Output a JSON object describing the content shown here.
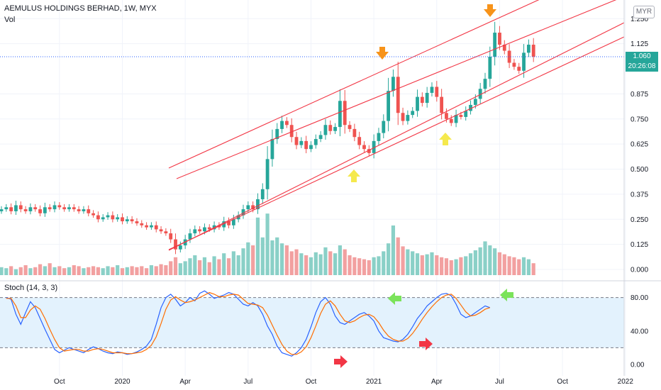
{
  "header": {
    "symbol_line": "AEMULUS HOLDINGS BERHAD, 1W, MYX",
    "volume_label": "Vol",
    "stoch_label": "Stoch (14, 3, 3)"
  },
  "price_axis": {
    "currency_button": "MYR",
    "last_price": "1.060",
    "countdown": "20:26:08"
  },
  "colors": {
    "up": "#26a69a",
    "down": "#ef5350",
    "vol_up": "#8ad0c7",
    "vol_down": "#f2a0a0",
    "channel": "#f23645",
    "stoch_k": "#2962ff",
    "stoch_d": "#ff6d00",
    "stoch_band": "#e3f2fd"
  },
  "chart_data": [
    {
      "type": "candlestick",
      "title": "AEMULUS HOLDINGS BERHAD, 1W, MYX",
      "ylim": [
        0,
        1.3
      ],
      "y_ticks": [
        "0.000",
        "0.125",
        "0.250",
        "0.375",
        "0.500",
        "0.625",
        "0.750",
        "0.875",
        "1.125",
        "1.250"
      ],
      "x_ticks": [
        {
          "label": "Oct",
          "week": 12
        },
        {
          "label": "2020",
          "week": 25
        },
        {
          "label": "Apr",
          "week": 38
        },
        {
          "label": "Jul",
          "week": 51
        },
        {
          "label": "Oct",
          "week": 64
        },
        {
          "label": "2021",
          "week": 77
        },
        {
          "label": "Apr",
          "week": 90
        },
        {
          "label": "Jul",
          "week": 103
        },
        {
          "label": "Oct",
          "week": 116
        },
        {
          "label": "2022",
          "week": 129
        }
      ],
      "close": [
        0.3,
        0.31,
        0.29,
        0.32,
        0.3,
        0.29,
        0.31,
        0.3,
        0.28,
        0.31,
        0.3,
        0.32,
        0.31,
        0.3,
        0.31,
        0.3,
        0.29,
        0.3,
        0.28,
        0.27,
        0.25,
        0.26,
        0.27,
        0.25,
        0.26,
        0.24,
        0.25,
        0.24,
        0.23,
        0.22,
        0.21,
        0.22,
        0.2,
        0.19,
        0.18,
        0.15,
        0.1,
        0.12,
        0.15,
        0.18,
        0.2,
        0.19,
        0.21,
        0.2,
        0.22,
        0.21,
        0.24,
        0.22,
        0.25,
        0.27,
        0.3,
        0.32,
        0.3,
        0.35,
        0.4,
        0.55,
        0.65,
        0.7,
        0.74,
        0.72,
        0.66,
        0.62,
        0.64,
        0.6,
        0.62,
        0.65,
        0.67,
        0.72,
        0.69,
        0.71,
        0.84,
        0.72,
        0.7,
        0.66,
        0.62,
        0.6,
        0.58,
        0.64,
        0.68,
        0.74,
        0.89,
        0.96,
        0.78,
        0.74,
        0.77,
        0.79,
        0.86,
        0.83,
        0.88,
        0.91,
        0.86,
        0.78,
        0.75,
        0.73,
        0.77,
        0.76,
        0.79,
        0.82,
        0.85,
        0.9,
        0.95,
        1.06,
        1.18,
        1.12,
        1.09,
        1.03,
        1.01,
        0.99,
        1.08,
        1.12,
        1.06
      ],
      "y_annotations": [
        {
          "text": "1.060",
          "y": 1.06
        }
      ]
    },
    {
      "type": "bar",
      "title": "Vol",
      "values": [
        8,
        7,
        9,
        6,
        8,
        10,
        7,
        8,
        11,
        9,
        12,
        8,
        9,
        7,
        8,
        10,
        9,
        7,
        8,
        9,
        8,
        7,
        9,
        8,
        10,
        7,
        8,
        9,
        8,
        9,
        7,
        10,
        9,
        11,
        10,
        14,
        18,
        12,
        14,
        17,
        20,
        15,
        18,
        13,
        19,
        16,
        22,
        17,
        24,
        20,
        27,
        33,
        30,
        58,
        38,
        62,
        35,
        38,
        32,
        30,
        24,
        26,
        22,
        20,
        18,
        23,
        21,
        28,
        24,
        22,
        30,
        26,
        20,
        18,
        17,
        16,
        15,
        18,
        19,
        24,
        32,
        50,
        38,
        29,
        26,
        24,
        22,
        20,
        21,
        23,
        20,
        18,
        17,
        15,
        16,
        18,
        19,
        22,
        25,
        28,
        34,
        30,
        27,
        23,
        21,
        19,
        18,
        16,
        18,
        16,
        12
      ],
      "ylim": [
        0,
        65
      ]
    },
    {
      "type": "line",
      "title": "Stoch (14, 3, 3)",
      "ylim": [
        0,
        100
      ],
      "y_ticks": [
        "0.00",
        "40.00",
        "80.00"
      ],
      "bands": [
        20,
        80
      ],
      "series": [
        {
          "values": [
            80,
            78,
            60,
            48,
            62,
            75,
            68,
            55,
            42,
            30,
            18,
            14,
            17,
            20,
            18,
            16,
            14,
            18,
            21,
            19,
            16,
            14,
            13,
            15,
            14,
            12,
            13,
            15,
            18,
            22,
            30,
            48,
            68,
            80,
            84,
            78,
            70,
            74,
            80,
            76,
            85,
            88,
            84,
            79,
            81,
            83,
            86,
            84,
            78,
            72,
            70,
            74,
            70,
            60,
            46,
            36,
            22,
            14,
            12,
            10,
            14,
            20,
            30,
            45,
            62,
            75,
            80,
            72,
            58,
            50,
            48,
            52,
            56,
            60,
            62,
            58,
            52,
            40,
            32,
            30,
            28,
            27,
            30,
            36,
            45,
            55,
            62,
            70,
            75,
            80,
            84,
            85,
            82,
            72,
            60,
            56,
            58,
            62,
            66,
            70,
            68
          ]
        },
        {
          "values": [
            79,
            79,
            70,
            56,
            56,
            65,
            70,
            66,
            55,
            42,
            30,
            20,
            16,
            17,
            18,
            18,
            16,
            16,
            18,
            19,
            18,
            16,
            14,
            14,
            14,
            13,
            13,
            14,
            15,
            18,
            23,
            33,
            49,
            66,
            77,
            81,
            77,
            74,
            75,
            77,
            80,
            83,
            86,
            84,
            81,
            81,
            83,
            84,
            83,
            78,
            73,
            72,
            71,
            68,
            59,
            47,
            35,
            24,
            16,
            12,
            12,
            15,
            21,
            32,
            46,
            61,
            72,
            76,
            70,
            60,
            52,
            50,
            52,
            56,
            59,
            60,
            57,
            50,
            41,
            34,
            30,
            28,
            28,
            31,
            37,
            45,
            54,
            62,
            69,
            75,
            80,
            83,
            84,
            79,
            71,
            63,
            58,
            59,
            62,
            66,
            68
          ]
        }
      ]
    }
  ]
}
